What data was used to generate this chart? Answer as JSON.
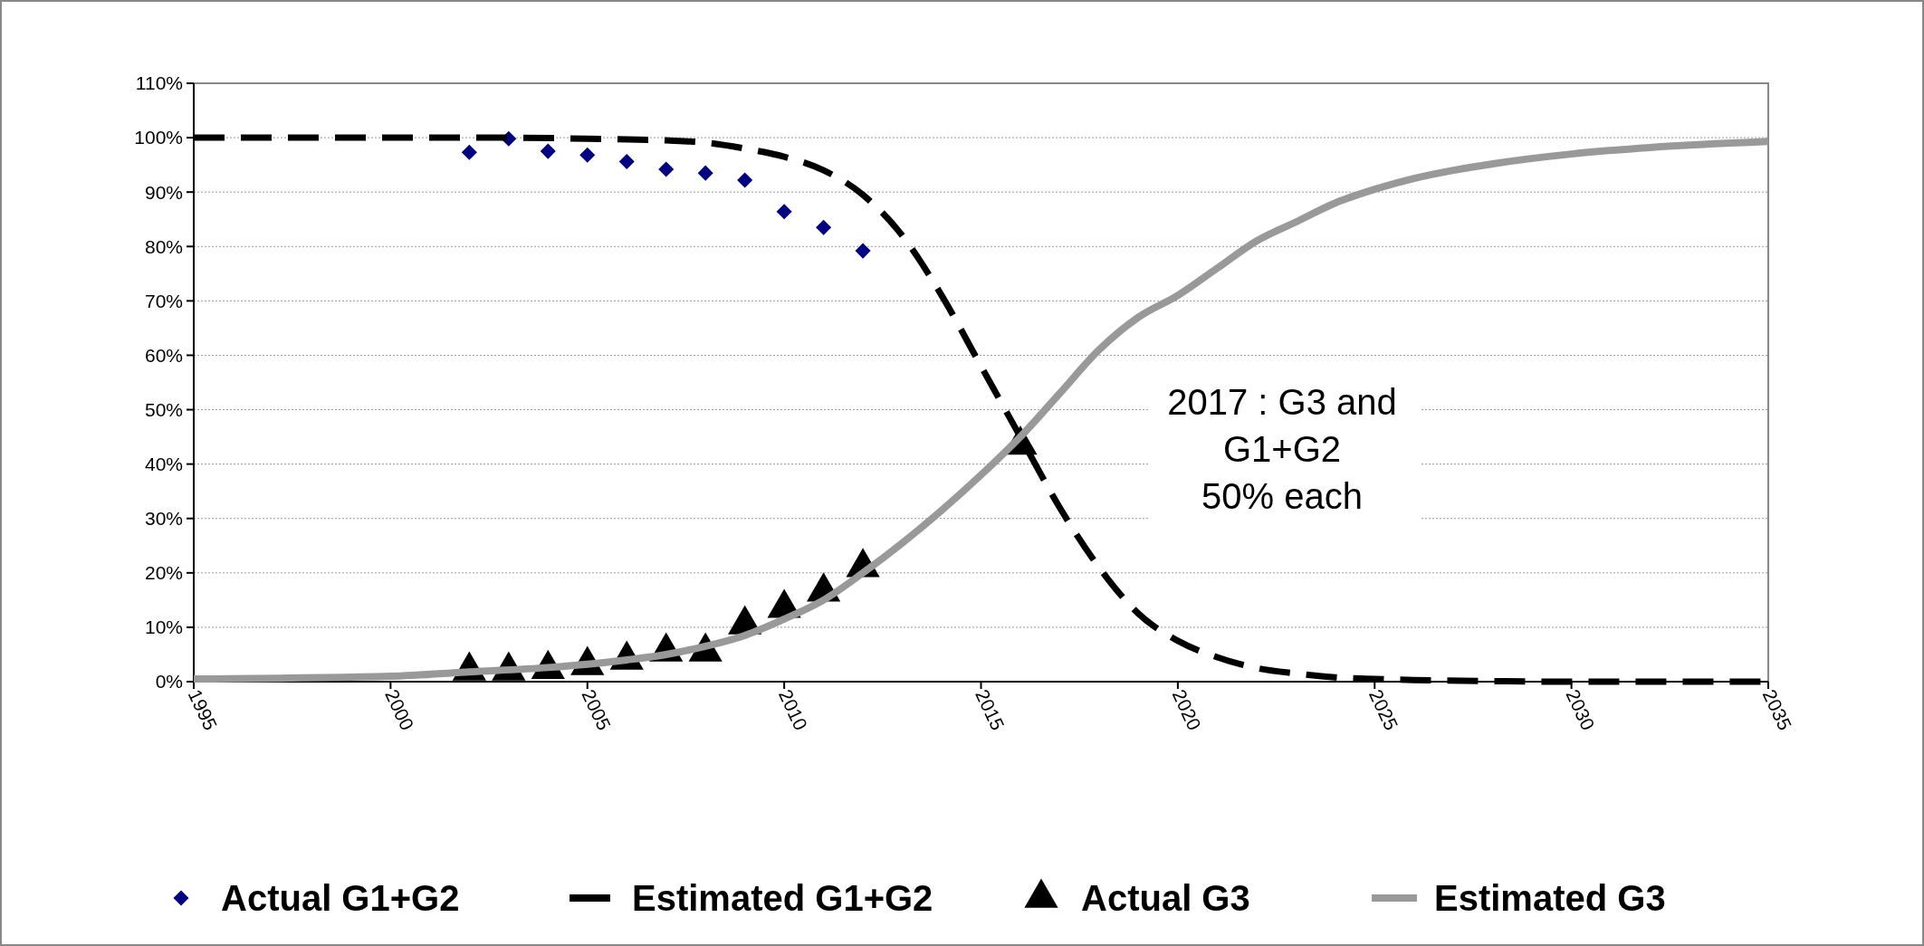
{
  "chart_data": {
    "type": "line",
    "xlim": [
      1995,
      2035
    ],
    "xticks": [
      1995,
      2000,
      2005,
      2010,
      2015,
      2020,
      2025,
      2030,
      2035
    ],
    "ylim": [
      0,
      110
    ],
    "yticks": [
      {
        "value": 0,
        "label": "0%"
      },
      {
        "value": 10,
        "label": "10%"
      },
      {
        "value": 20,
        "label": "20%"
      },
      {
        "value": 30,
        "label": "30%"
      },
      {
        "value": 40,
        "label": "40%"
      },
      {
        "value": 50,
        "label": "50%"
      },
      {
        "value": 60,
        "label": "60%"
      },
      {
        "value": 70,
        "label": "70%"
      },
      {
        "value": 80,
        "label": "80%"
      },
      {
        "value": 90,
        "label": "90%"
      },
      {
        "value": 100,
        "label": "100%"
      },
      {
        "value": 110,
        "label": "110%"
      }
    ],
    "grid": "y",
    "legend": "bottom",
    "annotations": [
      "2017 : G3 and\nG1+G2\n50% each"
    ],
    "series": [
      {
        "name": "Actual G1+G2",
        "type": "scatter",
        "marker": "diamond",
        "color": "#000080",
        "x": [
          2002,
          2003,
          2004,
          2005,
          2006,
          2007,
          2008,
          2009,
          2010,
          2011,
          2012
        ],
        "values": [
          97.3,
          99.8,
          97.5,
          96.8,
          95.6,
          94.2,
          93.5,
          92.2,
          86.4,
          83.5,
          79.2
        ]
      },
      {
        "name": "Estimated G1+G2",
        "line_style": "dashed",
        "color": "#000000",
        "x": [
          1995,
          2000,
          2003,
          2005,
          2007,
          2008,
          2009,
          2010,
          2011,
          2012,
          2013,
          2014,
          2015,
          2016,
          2017,
          2018,
          2019,
          2020,
          2021,
          2022,
          2023,
          2024,
          2025,
          2026,
          2028,
          2030,
          2035
        ],
        "values": [
          100,
          100,
          100,
          99.8,
          99.5,
          99.1,
          98,
          96.5,
          94,
          89.5,
          82,
          71,
          58,
          45,
          32,
          21,
          12.5,
          7.5,
          4.5,
          2.5,
          1.5,
          0.8,
          0.5,
          0.3,
          0.1,
          0,
          0
        ]
      },
      {
        "name": "Actual G3",
        "type": "scatter",
        "marker": "triangle",
        "color": "#000000",
        "x": [
          2002,
          2003,
          2004,
          2005,
          2006,
          2007,
          2008,
          2009,
          2010,
          2011,
          2012,
          2016
        ],
        "values": [
          2,
          2,
          2.3,
          3,
          4,
          5.5,
          5.5,
          10.5,
          13.5,
          16.5,
          21,
          43.5
        ]
      },
      {
        "name": "Estimated G3",
        "line_style": "solid",
        "color": "#999999",
        "x": [
          1995,
          2000,
          2002,
          2004,
          2005,
          2006,
          2007,
          2008,
          2009,
          2010,
          2011,
          2012,
          2013,
          2014,
          2015,
          2016,
          2017,
          2018,
          2019,
          2020,
          2021,
          2022,
          2023,
          2024,
          2025,
          2026,
          2027,
          2028,
          2030,
          2032,
          2035
        ],
        "values": [
          0.5,
          1,
          1.8,
          2.6,
          3.2,
          4,
          5,
          6.5,
          8.5,
          11.5,
          15,
          20,
          25.5,
          31.5,
          38,
          45,
          53,
          61,
          67,
          71,
          76,
          81,
          84.5,
          88,
          90.5,
          92.5,
          94,
          95.2,
          97,
          98.2,
          99.3
        ]
      }
    ]
  }
}
